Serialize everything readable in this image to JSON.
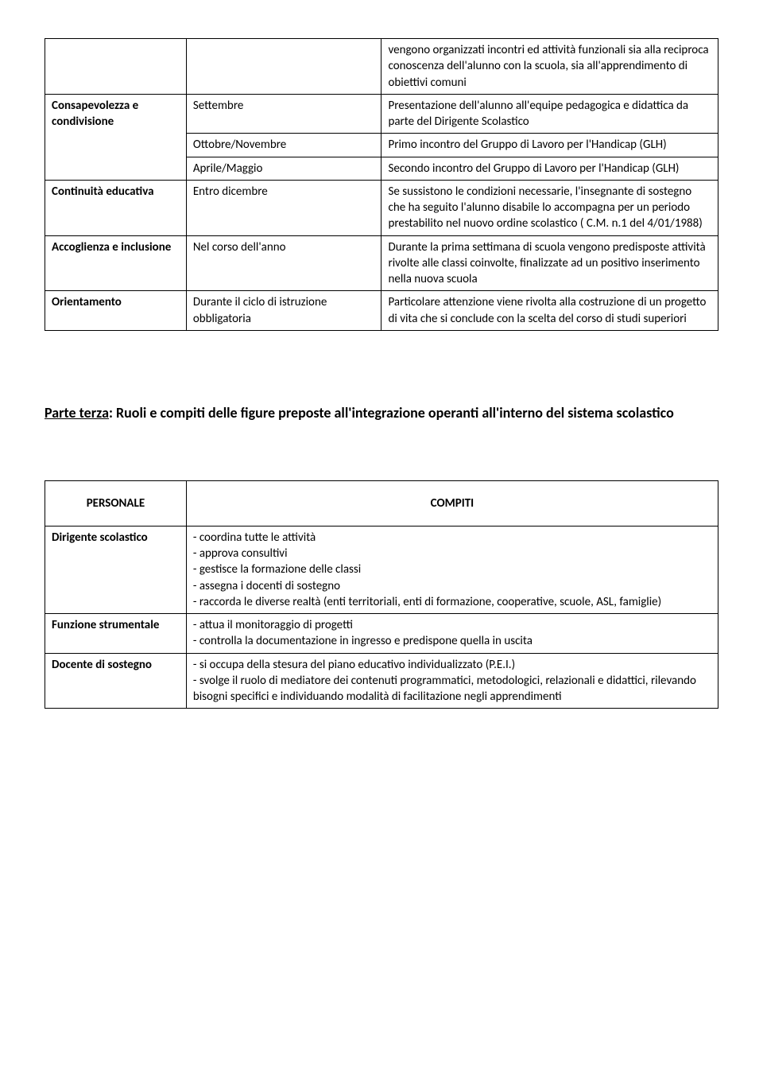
{
  "table1": {
    "rows": [
      {
        "label": "",
        "timing": "",
        "desc": "vengono organizzati incontri ed attività funzionali sia alla reciproca conoscenza dell'alunno con la scuola, sia all'apprendimento di obiettivi comuni",
        "label_bold": false
      },
      {
        "label": "Consapevolezza e condivisione",
        "sub": [
          {
            "timing": "Settembre",
            "desc": "Presentazione dell'alunno all'equipe pedagogica e didattica da parte del Dirigente Scolastico"
          },
          {
            "timing": "Ottobre/Novembre",
            "desc": "Primo incontro del Gruppo di Lavoro per l'Handicap (GLH)"
          },
          {
            "timing": "Aprile/Maggio",
            "desc": "Secondo incontro del Gruppo di Lavoro per l'Handicap (GLH)"
          }
        ],
        "label_bold": true
      },
      {
        "label": "Continuità educativa",
        "timing": "Entro dicembre",
        "desc": "Se sussistono le condizioni necessarie, l'insegnante di sostegno che ha seguito l'alunno disabile lo accompagna per un periodo prestabilito nel nuovo ordine scolastico ( C.M. n.1 del 4/01/1988)",
        "label_bold": true
      },
      {
        "label": "Accoglienza e inclusione",
        "timing": "Nel corso dell'anno",
        "desc": "Durante la prima settimana di scuola vengono predisposte attività rivolte alle classi coinvolte, finalizzate ad un positivo inserimento nella nuova scuola",
        "label_bold": true
      },
      {
        "label": "Orientamento",
        "timing": "Durante il ciclo di istruzione obbligatoria",
        "desc": "Particolare attenzione viene rivolta alla costruzione di un progetto di vita che si conclude con la scelta del corso di studi superiori",
        "label_bold": true
      }
    ]
  },
  "section_heading": {
    "lead": "Parte terza",
    "rest": ": Ruoli e compiti delle figure preposte all'integrazione operanti all'interno del sistema scolastico"
  },
  "table2": {
    "header": {
      "left": "PERSONALE",
      "right": "COMPITI"
    },
    "rows": [
      {
        "label": "Dirigente scolastico",
        "items": [
          "- coordina tutte le attività",
          "- approva consultivi",
          "- gestisce la formazione delle classi",
          "- assegna i docenti di sostegno",
          "- raccorda le diverse realtà (enti territoriali, enti di formazione, cooperative, scuole, ASL, famiglie)"
        ]
      },
      {
        "label": "Funzione strumentale",
        "items": [
          "- attua il monitoraggio di progetti",
          "- controlla la documentazione in ingresso e predispone quella in uscita"
        ]
      },
      {
        "label": "Docente di sostegno",
        "items": [
          "- si occupa della stesura del  piano educativo individualizzato (P.E.I.)",
          "- svolge il ruolo di mediatore dei contenuti programmatici, metodologici, relazionali e didattici, rilevando bisogni specifici e individuando modalità di facilitazione negli apprendimenti"
        ]
      }
    ]
  }
}
